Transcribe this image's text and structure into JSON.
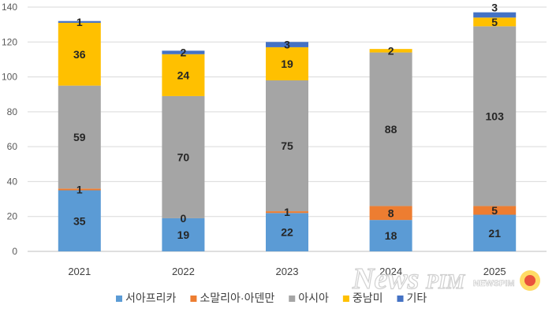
{
  "chart_data": {
    "type": "bar",
    "stacked": true,
    "categories": [
      "2021",
      "2022",
      "2023",
      "2024",
      "2025"
    ],
    "ylim": [
      0,
      140
    ],
    "yticks": [
      0,
      20,
      40,
      60,
      80,
      100,
      120,
      140
    ],
    "grid": true,
    "legend_position": "bottom",
    "series": [
      {
        "name": "서아프리카",
        "color": "#5b9bd5",
        "values": [
          35,
          19,
          22,
          18,
          21
        ]
      },
      {
        "name": "소말리아·아덴만",
        "color": "#ed7d31",
        "values": [
          1,
          0,
          1,
          8,
          5
        ]
      },
      {
        "name": "아시아",
        "color": "#a5a5a5",
        "values": [
          59,
          70,
          75,
          88,
          103
        ]
      },
      {
        "name": "중남미",
        "color": "#ffc000",
        "values": [
          36,
          24,
          19,
          2,
          5
        ]
      },
      {
        "name": "기타",
        "color": "#4472c4",
        "values": [
          1,
          2,
          3,
          0,
          3
        ]
      }
    ]
  },
  "watermark": {
    "text": "NewsPiM",
    "subtext": "NEWSPIM"
  }
}
